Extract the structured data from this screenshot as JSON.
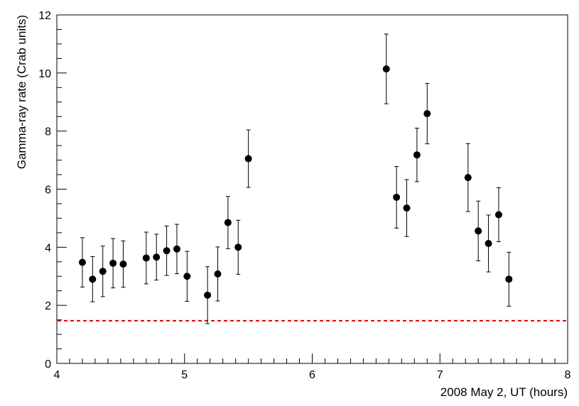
{
  "chart_data": {
    "type": "scatter",
    "xlabel": "2008 May 2, UT (hours)",
    "ylabel": "Gamma-ray rate (Crab units)",
    "xlim": [
      4,
      8
    ],
    "ylim": [
      0,
      12
    ],
    "x_ticks": [
      4,
      5,
      6,
      7,
      8
    ],
    "x_tick_labels": [
      "4",
      "5",
      "6",
      "7",
      "8"
    ],
    "y_ticks": [
      0,
      2,
      4,
      6,
      8,
      10,
      12
    ],
    "y_tick_labels": [
      "0",
      "2",
      "4",
      "6",
      "8",
      "10",
      "12"
    ],
    "grid": false,
    "marker_color": "#000000",
    "baseline": {
      "y": 1.47,
      "color": "#e00000",
      "style": "dashed"
    },
    "points": [
      {
        "x": 4.2,
        "y": 3.48,
        "err": 0.85
      },
      {
        "x": 4.28,
        "y": 2.9,
        "err": 0.78
      },
      {
        "x": 4.36,
        "y": 3.17,
        "err": 0.87
      },
      {
        "x": 4.44,
        "y": 3.45,
        "err": 0.85
      },
      {
        "x": 4.52,
        "y": 3.42,
        "err": 0.8
      },
      {
        "x": 4.7,
        "y": 3.63,
        "err": 0.89
      },
      {
        "x": 4.78,
        "y": 3.66,
        "err": 0.79
      },
      {
        "x": 4.86,
        "y": 3.88,
        "err": 0.85
      },
      {
        "x": 4.94,
        "y": 3.94,
        "err": 0.85
      },
      {
        "x": 5.02,
        "y": 3.0,
        "err": 0.86
      },
      {
        "x": 5.18,
        "y": 2.35,
        "err": 0.98
      },
      {
        "x": 5.26,
        "y": 3.08,
        "err": 0.93
      },
      {
        "x": 5.34,
        "y": 4.85,
        "err": 0.9
      },
      {
        "x": 5.42,
        "y": 4.0,
        "err": 0.93
      },
      {
        "x": 5.5,
        "y": 7.05,
        "err": 0.99
      },
      {
        "x": 6.58,
        "y": 10.14,
        "err": 1.2
      },
      {
        "x": 6.66,
        "y": 5.72,
        "err": 1.06
      },
      {
        "x": 6.74,
        "y": 5.35,
        "err": 0.98
      },
      {
        "x": 6.82,
        "y": 7.18,
        "err": 0.92
      },
      {
        "x": 6.9,
        "y": 8.6,
        "err": 1.04
      },
      {
        "x": 7.22,
        "y": 6.4,
        "err": 1.17
      },
      {
        "x": 7.3,
        "y": 4.56,
        "err": 1.03
      },
      {
        "x": 7.38,
        "y": 4.13,
        "err": 0.98
      },
      {
        "x": 7.46,
        "y": 5.12,
        "err": 0.93
      },
      {
        "x": 7.54,
        "y": 2.9,
        "err": 0.93
      }
    ]
  }
}
